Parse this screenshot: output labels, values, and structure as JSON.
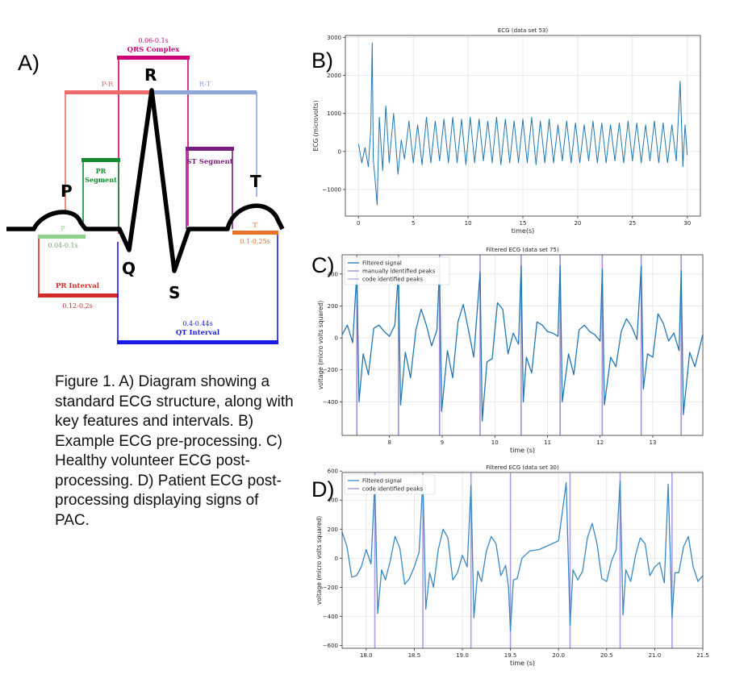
{
  "panels": {
    "a": "A)",
    "b": "B)",
    "c": "C)",
    "d": "D)"
  },
  "caption": "Figure 1. A) Diagram showing a standard ECG structure, along with key features and intervals. B) Example ECG pre-processing. C) Healthy volunteer ECG post-processing. D) Patient ECG post-processing displaying signs of PAC.",
  "diagram": {
    "waves": {
      "p": "P",
      "q": "Q",
      "r": "R",
      "s": "S",
      "t": "T"
    },
    "qrs_complex": {
      "duration": "0.06-0.1s",
      "label": "QRS Complex",
      "color": "#cc0077"
    },
    "pr": {
      "label": "P-R",
      "color": "#f06b6b"
    },
    "rt": {
      "label": "R-T",
      "color": "#8fa6d8"
    },
    "pr_segment": {
      "line1": "PR",
      "line2": "Segment",
      "color": "#138a2d"
    },
    "st_segment": {
      "label": "ST Segment",
      "color": "#7a1e7e"
    },
    "p_wave": {
      "label": "P",
      "duration": "0.04-0.1s",
      "color": "#8fd08a"
    },
    "t_wave": {
      "label": "T",
      "duration": "0.1-0.25s",
      "color": "#e8722a"
    },
    "pr_interval": {
      "label": "PR Interval",
      "duration": "0.12-0.2s",
      "color": "#d42a2a"
    },
    "qt_interval": {
      "duration": "0.4-0.44s",
      "label": "QT Interval",
      "color": "#1a1ae6"
    }
  },
  "chart_data": [
    {
      "type": "line",
      "title": "ECG (data set 53)",
      "xlabel": "time(s)",
      "ylabel": "ECG (microvolts)",
      "xlim": [
        -1.2,
        31.2
      ],
      "ylim": [
        -1700,
        3050
      ],
      "xticks": [
        0,
        5,
        10,
        15,
        20,
        25,
        30
      ],
      "yticks": [
        -1000,
        0,
        1000,
        2000,
        3000
      ],
      "grid": true,
      "color": "#1f77b4",
      "series": [
        {
          "name": "",
          "x": [
            0,
            0.3,
            0.6,
            0.9,
            1.12,
            1.25,
            1.35,
            1.5,
            1.7,
            1.9,
            2.2,
            2.5,
            2.8,
            3.2,
            3.6,
            3.9,
            4.2,
            4.6,
            5.0,
            5.4,
            5.8,
            6.2,
            6.6,
            7.0,
            7.4,
            7.8,
            8.2,
            8.6,
            9.0,
            9.4,
            9.8,
            10.2,
            10.6,
            11.0,
            11.4,
            11.8,
            12.2,
            12.6,
            13.0,
            13.4,
            13.8,
            14.2,
            14.6,
            15.0,
            15.4,
            15.8,
            16.2,
            16.6,
            17.0,
            17.4,
            17.8,
            18.2,
            18.6,
            19.0,
            19.4,
            19.8,
            20.2,
            20.6,
            21.0,
            21.4,
            21.8,
            22.2,
            22.6,
            23.0,
            23.4,
            23.8,
            24.2,
            24.6,
            25.0,
            25.4,
            25.8,
            26.2,
            26.6,
            27.0,
            27.4,
            27.8,
            28.2,
            28.6,
            29.0,
            29.35,
            29.6,
            29.8,
            30.0
          ],
          "y": [
            200,
            -300,
            100,
            -400,
            600,
            2850,
            -200,
            -700,
            -1400,
            900,
            -500,
            1200,
            -300,
            1000,
            -600,
            300,
            -200,
            800,
            -300,
            700,
            -350,
            900,
            -300,
            800,
            -250,
            850,
            -300,
            900,
            -300,
            850,
            -350,
            900,
            -300,
            850,
            -250,
            800,
            -300,
            900,
            -350,
            850,
            -300,
            800,
            -300,
            850,
            -300,
            900,
            -350,
            800,
            -300,
            850,
            -300,
            700,
            -250,
            800,
            -300,
            750,
            -300,
            700,
            -250,
            800,
            -300,
            750,
            -300,
            700,
            -250,
            750,
            -300,
            800,
            -250,
            750,
            -300,
            700,
            -250,
            800,
            -300,
            750,
            -300,
            700,
            -250,
            1850,
            -400,
            700,
            -100
          ]
        }
      ]
    },
    {
      "type": "line",
      "title": "Filtered ECG (data set 75)",
      "xlabel": "time (s)",
      "ylabel": "voltage (micro volts squared)",
      "xlim": [
        7.1,
        13.95
      ],
      "ylim": [
        -610,
        520
      ],
      "xticks": [
        8,
        9,
        10,
        11,
        12,
        13
      ],
      "yticks": [
        -400,
        -200,
        0,
        200,
        400
      ],
      "grid": true,
      "legend": "top-left",
      "series": [
        {
          "name": "Filtered signal",
          "color": "#1f77b4",
          "x": [
            7.1,
            7.2,
            7.3,
            7.38,
            7.42,
            7.5,
            7.6,
            7.7,
            7.8,
            7.9,
            8.0,
            8.1,
            8.17,
            8.21,
            8.3,
            8.4,
            8.5,
            8.6,
            8.7,
            8.8,
            8.9,
            8.95,
            8.99,
            9.1,
            9.2,
            9.3,
            9.4,
            9.5,
            9.6,
            9.72,
            9.76,
            9.85,
            9.95,
            10.05,
            10.15,
            10.25,
            10.35,
            10.45,
            10.5,
            10.54,
            10.6,
            10.7,
            10.8,
            10.9,
            11.0,
            11.1,
            11.2,
            11.24,
            11.28,
            11.4,
            11.5,
            11.6,
            11.7,
            11.8,
            11.9,
            12.0,
            12.04,
            12.08,
            12.2,
            12.3,
            12.4,
            12.5,
            12.6,
            12.7,
            12.78,
            12.82,
            12.9,
            13.0,
            13.1,
            13.2,
            13.3,
            13.4,
            13.5,
            13.54,
            13.58,
            13.7,
            13.8,
            13.95
          ],
          "y": [
            20,
            80,
            -30,
            420,
            -400,
            -100,
            -230,
            60,
            80,
            40,
            10,
            80,
            410,
            -420,
            -90,
            -250,
            50,
            180,
            80,
            -50,
            50,
            440,
            -460,
            -80,
            -250,
            100,
            210,
            50,
            -120,
            410,
            -520,
            -150,
            -130,
            220,
            180,
            -100,
            30,
            -40,
            450,
            -400,
            -120,
            -220,
            100,
            80,
            40,
            30,
            10,
            450,
            -400,
            -100,
            -230,
            50,
            80,
            40,
            20,
            -20,
            430,
            -420,
            -120,
            -180,
            40,
            120,
            70,
            -10,
            450,
            -320,
            -100,
            -120,
            150,
            90,
            -20,
            30,
            -80,
            420,
            -480,
            -90,
            -180,
            20
          ]
        }
      ],
      "vlines": {
        "manually identified peaks": {
          "color": "#9a7dc9",
          "x": [
            7.38,
            8.17,
            8.95,
            9.72,
            10.5,
            11.24,
            12.04,
            12.78,
            13.54
          ]
        },
        "code identified peaks": {
          "color": "#b5a4e6"
        }
      }
    },
    {
      "type": "line",
      "title": "Filtered ECG (data set 30)",
      "xlabel": "time (s)",
      "ylabel": "voltage (micro volts squared)",
      "xlim": [
        17.75,
        21.5
      ],
      "ylim": [
        -620,
        590
      ],
      "xticks": [
        18.0,
        18.5,
        19.0,
        19.5,
        20.0,
        20.5,
        21.0,
        21.5
      ],
      "yticks": [
        -600,
        -400,
        -200,
        0,
        200,
        400,
        600
      ],
      "grid": true,
      "legend": "top-left",
      "series": [
        {
          "name": "Filtered signal",
          "color": "#3a88c4",
          "x": [
            17.75,
            17.8,
            17.85,
            17.9,
            17.95,
            18.0,
            18.05,
            18.09,
            18.12,
            18.16,
            18.2,
            18.25,
            18.3,
            18.35,
            18.4,
            18.45,
            18.5,
            18.55,
            18.59,
            18.62,
            18.66,
            18.7,
            18.75,
            18.8,
            18.85,
            18.9,
            18.95,
            19.0,
            19.05,
            19.09,
            19.12,
            19.16,
            19.2,
            19.25,
            19.3,
            19.35,
            19.4,
            19.45,
            19.48,
            19.5,
            19.53,
            19.57,
            19.62,
            19.7,
            19.8,
            19.9,
            20.0,
            20.08,
            20.12,
            20.15,
            20.2,
            20.25,
            20.3,
            20.35,
            20.4,
            20.45,
            20.5,
            20.55,
            20.6,
            20.64,
            20.67,
            20.7,
            20.75,
            20.8,
            20.85,
            20.9,
            20.95,
            21.0,
            21.05,
            21.1,
            21.14,
            21.18,
            21.21,
            21.25,
            21.3,
            21.35,
            21.4,
            21.45,
            21.5
          ],
          "y": [
            180,
            80,
            -130,
            -120,
            -60,
            60,
            -40,
            520,
            -380,
            -80,
            -150,
            -20,
            150,
            70,
            -180,
            -140,
            -60,
            40,
            550,
            -350,
            -100,
            -200,
            60,
            200,
            140,
            -150,
            -100,
            20,
            -60,
            500,
            -410,
            -90,
            -160,
            50,
            150,
            100,
            -120,
            -50,
            -200,
            -500,
            -150,
            -140,
            0,
            50,
            60,
            90,
            120,
            520,
            -460,
            -80,
            -150,
            -90,
            140,
            240,
            100,
            -140,
            -160,
            -20,
            60,
            530,
            -390,
            -80,
            -160,
            20,
            140,
            100,
            -120,
            -60,
            -30,
            -170,
            510,
            -410,
            -100,
            -100,
            80,
            150,
            -60,
            -160,
            -120
          ]
        }
      ],
      "vlines": {
        "code identified peaks": {
          "color": "#a08ce0",
          "x": [
            18.09,
            18.59,
            19.09,
            19.5,
            20.12,
            20.64,
            21.18
          ]
        }
      }
    }
  ]
}
